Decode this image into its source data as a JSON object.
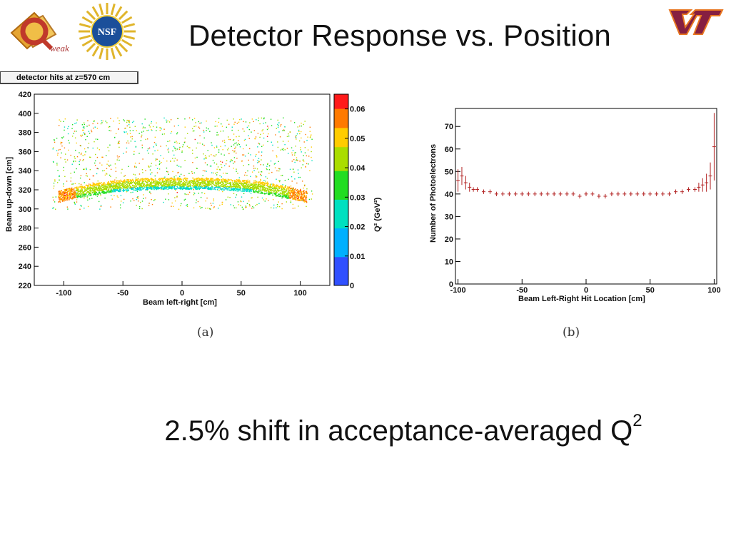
{
  "slide": {
    "title": "Detector Response vs. Position",
    "caption_main": "2.5% shift in acceptance-averaged Q",
    "caption_sup": "2"
  },
  "logos": {
    "qweak": "weak",
    "nsf": "NSF",
    "vt": "VT"
  },
  "colors": {
    "background": "#ffffff",
    "error_bar_series": "#b22222",
    "vt_maroon": "#861F41"
  },
  "chart_data": [
    {
      "type": "scatter",
      "title": "detector hits at z=570 cm",
      "xlabel": "Beam left-right [cm]",
      "ylabel": "Beam up-down [cm]",
      "xlim": [
        -125,
        125
      ],
      "ylim": [
        220,
        420
      ],
      "xticks": [
        -100,
        -50,
        0,
        50,
        100
      ],
      "yticks": [
        220,
        240,
        260,
        280,
        300,
        320,
        340,
        360,
        380,
        400,
        420
      ],
      "colorbar": {
        "label": "Q² (GeV²)",
        "range": [
          0,
          0.065
        ],
        "ticks": [
          "0",
          "0.01",
          "0.02",
          "0.03",
          "0.04",
          "0.05",
          "0.06"
        ]
      },
      "band": {
        "x": [
          -105,
          -100,
          -80,
          -60,
          -40,
          -20,
          0,
          20,
          40,
          60,
          80,
          100,
          105
        ],
        "y_center": [
          313,
          315,
          320,
          324,
          326,
          327,
          327,
          327,
          326,
          324,
          320,
          315,
          313
        ]
      },
      "grid": false,
      "sublabel": "(a)"
    },
    {
      "type": "scatter",
      "xlabel": "Beam Left-Right Hit Location [cm]",
      "ylabel": "Number of Photoelectrons",
      "xlim": [
        -102,
        102
      ],
      "ylim": [
        0,
        78
      ],
      "xticks": [
        -100,
        -50,
        0,
        50,
        100
      ],
      "yticks": [
        0,
        10,
        20,
        30,
        40,
        50,
        60,
        70
      ],
      "x": [
        -100,
        -97,
        -94,
        -91,
        -88,
        -85,
        -80,
        -75,
        -70,
        -65,
        -60,
        -55,
        -50,
        -45,
        -40,
        -35,
        -30,
        -25,
        -20,
        -15,
        -10,
        -5,
        0,
        5,
        10,
        15,
        20,
        25,
        30,
        35,
        40,
        45,
        50,
        55,
        60,
        65,
        70,
        75,
        80,
        85,
        88,
        91,
        94,
        97,
        100
      ],
      "y": [
        46,
        48,
        45,
        43,
        42,
        42,
        41,
        41,
        40,
        40,
        40,
        40,
        40,
        40,
        40,
        40,
        40,
        40,
        40,
        40,
        40,
        39,
        40,
        40,
        39,
        39,
        40,
        40,
        40,
        40,
        40,
        40,
        40,
        40,
        40,
        40,
        41,
        41,
        42,
        42,
        43,
        44,
        45,
        48,
        61
      ],
      "yerr": [
        5,
        4,
        3,
        2,
        1,
        1,
        1,
        1,
        1,
        1,
        1,
        1,
        1,
        1,
        1,
        1,
        1,
        1,
        1,
        1,
        1,
        1,
        1,
        1,
        1,
        1,
        1,
        1,
        1,
        1,
        1,
        1,
        1,
        1,
        1,
        1,
        1,
        1,
        1,
        1,
        2,
        3,
        4,
        6,
        15
      ],
      "grid": false,
      "sublabel": "(b)"
    }
  ]
}
